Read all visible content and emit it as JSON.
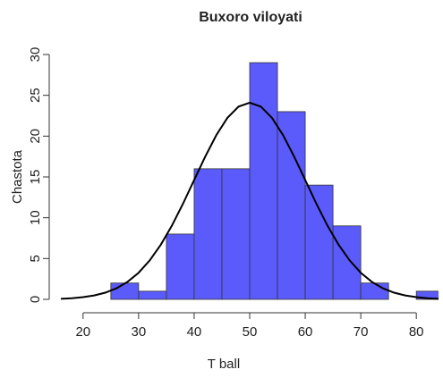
{
  "chart_data": {
    "type": "histogram",
    "title": "Buxoro viloyati",
    "xlabel": "T ball",
    "ylabel": "Chastota",
    "bins": [
      25,
      30,
      35,
      40,
      45,
      50,
      55,
      60,
      65,
      70,
      75,
      80,
      85
    ],
    "counts": [
      2,
      1,
      8,
      16,
      16,
      29,
      23,
      14,
      9,
      2,
      0,
      1
    ],
    "color": "#5b5bfb",
    "edgecolor": "#333333",
    "curve": {
      "color": "#000000",
      "x": [
        16,
        18,
        20,
        22,
        24,
        26,
        28,
        30,
        32,
        34,
        36,
        38,
        40,
        42,
        44,
        46,
        48,
        50,
        52,
        54,
        56,
        58,
        60,
        62,
        64,
        66,
        68,
        70,
        72,
        74,
        76,
        78,
        80,
        82,
        84
      ],
      "y": [
        0.07,
        0.14,
        0.27,
        0.48,
        0.82,
        1.35,
        2.14,
        3.26,
        4.77,
        6.7,
        9.04,
        11.73,
        14.62,
        17.5,
        20.13,
        22.25,
        23.62,
        24.1,
        23.62,
        22.25,
        20.13,
        17.5,
        14.62,
        11.73,
        9.04,
        6.7,
        4.77,
        3.26,
        2.14,
        1.35,
        0.82,
        0.48,
        0.27,
        0.14,
        0.07
      ]
    },
    "xlim": [
      16,
      84
    ],
    "ylim": [
      0,
      30
    ],
    "xticks": [
      20,
      30,
      40,
      50,
      60,
      70,
      80
    ],
    "yticks": [
      0,
      5,
      10,
      15,
      20,
      25,
      30
    ]
  }
}
